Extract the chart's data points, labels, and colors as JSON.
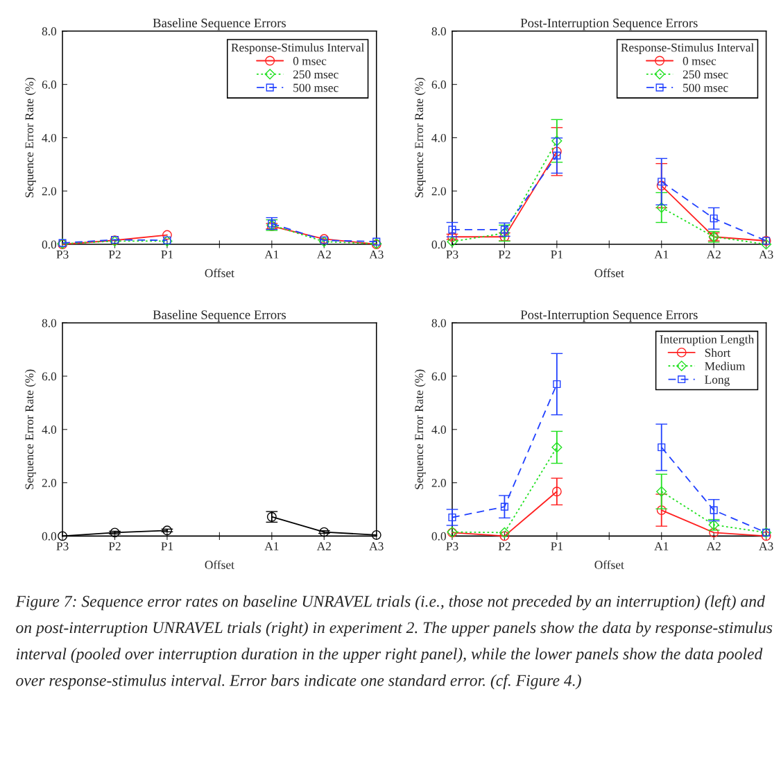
{
  "chart_data": [
    {
      "type": "line",
      "title": "Baseline Sequence Errors",
      "xlabel": "Offset",
      "ylabel": "Sequence Error Rate (%)",
      "categories": [
        "P3",
        "P2",
        "P1",
        null,
        "A1",
        "A2",
        "A3"
      ],
      "ylim": [
        0,
        8
      ],
      "yticks": [
        {
          "value": 0,
          "label": "0.0"
        },
        {
          "value": 2,
          "label": "2.0"
        },
        {
          "value": 4,
          "label": "4.0"
        },
        {
          "value": 6,
          "label": "6.0"
        },
        {
          "value": 8,
          "label": "8.0"
        }
      ],
      "grid": false,
      "legend": "top right",
      "legend_title": "Response-Stimulus Interval",
      "series": [
        {
          "name": "0 msec",
          "color": "#ff2020",
          "marker": "circle",
          "line_style": "solid",
          "values": [
            0.0,
            0.15,
            0.35,
            null,
            0.68,
            0.2,
            0.0
          ],
          "errors": [
            null,
            null,
            null,
            null,
            0.1,
            null,
            null
          ]
        },
        {
          "name": "250 msec",
          "color": "#20e020",
          "marker": "diamond",
          "line_style": "dotted",
          "values": [
            0.02,
            0.12,
            0.12,
            null,
            0.72,
            0.1,
            0.02
          ],
          "errors": [
            null,
            null,
            null,
            null,
            0.2,
            null,
            null
          ]
        },
        {
          "name": "500 msec",
          "color": "#2040ff",
          "marker": "square",
          "line_style": "dashed",
          "values": [
            0.05,
            0.17,
            0.15,
            null,
            0.78,
            0.15,
            0.1
          ],
          "errors": [
            null,
            null,
            null,
            null,
            0.22,
            null,
            null
          ]
        }
      ]
    },
    {
      "type": "line",
      "title": "Post-Interruption Sequence Errors",
      "xlabel": "Offset",
      "ylabel": "Sequence Error Rate (%)",
      "categories": [
        "P3",
        "P2",
        "P1",
        null,
        "A1",
        "A2",
        "A3"
      ],
      "ylim": [
        0,
        8
      ],
      "yticks": [
        {
          "value": 0,
          "label": "0.0"
        },
        {
          "value": 2,
          "label": "2.0"
        },
        {
          "value": 4,
          "label": "4.0"
        },
        {
          "value": 6,
          "label": "6.0"
        },
        {
          "value": 8,
          "label": "8.0"
        }
      ],
      "grid": false,
      "legend": "top right",
      "legend_title": "Response-Stimulus Interval",
      "series": [
        {
          "name": "0 msec",
          "color": "#ff2020",
          "marker": "circle",
          "line_style": "solid",
          "values": [
            0.28,
            0.28,
            3.48,
            null,
            2.2,
            0.28,
            0.13
          ],
          "errors": [
            0.1,
            0.15,
            0.9,
            null,
            0.83,
            0.15,
            null
          ]
        },
        {
          "name": "250 msec",
          "color": "#20e020",
          "marker": "diamond",
          "line_style": "dotted",
          "values": [
            0.1,
            0.42,
            3.88,
            null,
            1.38,
            0.28,
            0.0
          ],
          "errors": [
            null,
            0.3,
            0.8,
            null,
            0.56,
            0.2,
            null
          ]
        },
        {
          "name": "500 msec",
          "color": "#2040ff",
          "marker": "square",
          "line_style": "dashed",
          "values": [
            0.55,
            0.55,
            3.33,
            null,
            2.35,
            0.97,
            0.13
          ],
          "errors": [
            0.27,
            0.25,
            0.66,
            null,
            0.87,
            0.4,
            null
          ]
        }
      ]
    },
    {
      "type": "line",
      "title": "Baseline Sequence Errors",
      "xlabel": "Offset",
      "ylabel": "Sequence Error Rate (%)",
      "categories": [
        "P3",
        "P2",
        "P1",
        null,
        "A1",
        "A2",
        "A3"
      ],
      "ylim": [
        0,
        8
      ],
      "yticks": [
        {
          "value": 0,
          "label": "0.0"
        },
        {
          "value": 2,
          "label": "2.0"
        },
        {
          "value": 4,
          "label": "4.0"
        },
        {
          "value": 6,
          "label": "6.0"
        },
        {
          "value": 8,
          "label": "8.0"
        }
      ],
      "grid": false,
      "series": [
        {
          "color": "#000000",
          "marker": "circle",
          "line_style": "solid",
          "values": [
            0.0,
            0.13,
            0.21,
            null,
            0.72,
            0.15,
            0.04
          ],
          "errors": [
            null,
            0.05,
            0.05,
            null,
            0.2,
            0.05,
            null
          ]
        }
      ]
    },
    {
      "type": "line",
      "title": "Post-Interruption Sequence Errors",
      "xlabel": "Offset",
      "ylabel": "Sequence Error Rate (%)",
      "categories": [
        "P3",
        "P2",
        "P1",
        null,
        "A1",
        "A2",
        "A3"
      ],
      "ylim": [
        0,
        8
      ],
      "yticks": [
        {
          "value": 0,
          "label": "0.0"
        },
        {
          "value": 2,
          "label": "2.0"
        },
        {
          "value": 4,
          "label": "4.0"
        },
        {
          "value": 6,
          "label": "6.0"
        },
        {
          "value": 8,
          "label": "8.0"
        }
      ],
      "grid": false,
      "legend": "top right",
      "legend_title": "Interruption Length",
      "annotations": [
        "Figure 7: Sequence error rates on baseline UNRAVEL trials (i.e., those not preceded by an interruption) (left) and on post-interruption UNRAVEL trials (right) in experiment 2. The upper panels show the data by response-stimulus interval (pooled over interruption duration in the upper right panel), while the lower panels show the data pooled over response-stimulus interval. Error bars indicate one standard error. (cf. Figure 4.)"
      ],
      "series": [
        {
          "name": "Short",
          "color": "#ff2020",
          "marker": "circle",
          "line_style": "solid",
          "values": [
            0.13,
            0.0,
            1.67,
            null,
            0.97,
            0.13,
            0.0
          ],
          "errors": [
            null,
            null,
            0.5,
            null,
            0.6,
            null,
            null
          ]
        },
        {
          "name": "Medium",
          "color": "#20e020",
          "marker": "diamond",
          "line_style": "dotted",
          "values": [
            0.15,
            0.13,
            3.33,
            null,
            1.67,
            0.42,
            0.13
          ],
          "errors": [
            null,
            null,
            0.6,
            null,
            0.65,
            0.2,
            null
          ]
        },
        {
          "name": "Long",
          "color": "#2040ff",
          "marker": "square",
          "line_style": "dashed",
          "values": [
            0.7,
            1.1,
            5.7,
            null,
            3.33,
            0.97,
            0.13
          ],
          "errors": [
            0.3,
            0.42,
            1.15,
            null,
            0.87,
            0.4,
            null
          ]
        }
      ]
    }
  ]
}
